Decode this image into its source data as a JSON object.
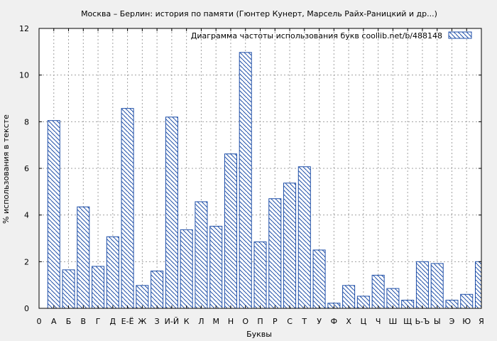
{
  "chart_data": {
    "type": "bar",
    "title": "Москва – Берлин: история по памяти (Гюнтер Кунерт, Марсель Райх-Раницкий и др...)",
    "xlabel": "Буквы",
    "ylabel": "% использования в тексте",
    "ylim": [
      0,
      12
    ],
    "yticks": [
      0,
      2,
      4,
      6,
      8,
      10,
      12
    ],
    "grid": true,
    "legend_position": "top-right",
    "colors": {
      "bar_stroke": "#1f4fa8",
      "hatch": "#1f4fa8",
      "grid": "#a0a0a0",
      "axis": "#000000",
      "background": "#f0f0f0"
    },
    "tick_labels": [
      "0",
      "А",
      "Б",
      "В",
      "Г",
      "Д",
      "Е-Ё",
      "Ж",
      "З",
      "И-Й",
      "К",
      "Л",
      "М",
      "Н",
      "О",
      "П",
      "Р",
      "С",
      "Т",
      "У",
      "Ф",
      "Х",
      "Ц",
      "Ч",
      "Ш",
      "Щ",
      "Ь-Ъ",
      "Ы",
      "Э",
      "Ю",
      "Я"
    ],
    "categories": [
      "А",
      "Б",
      "В",
      "Г",
      "Д",
      "Е-Ё",
      "Ж",
      "З",
      "И-Й",
      "К",
      "Л",
      "М",
      "Н",
      "О",
      "П",
      "Р",
      "С",
      "Т",
      "У",
      "Ф",
      "Х",
      "Ц",
      "Ч",
      "Ш",
      "Щ",
      "Ь-Ъ",
      "Ы",
      "Э",
      "Ю",
      "Я"
    ],
    "series": [
      {
        "name": "Диаграмма частоты использования букв  coollib.net/b/488148",
        "values": [
          8.05,
          1.65,
          4.35,
          1.8,
          3.07,
          8.57,
          0.98,
          1.6,
          8.2,
          3.37,
          4.57,
          3.52,
          6.62,
          10.97,
          2.85,
          4.7,
          5.37,
          6.07,
          2.5,
          0.22,
          0.98,
          0.52,
          1.42,
          0.85,
          0.35,
          2.0,
          1.92,
          0.35,
          0.6,
          2.0
        ]
      }
    ]
  }
}
